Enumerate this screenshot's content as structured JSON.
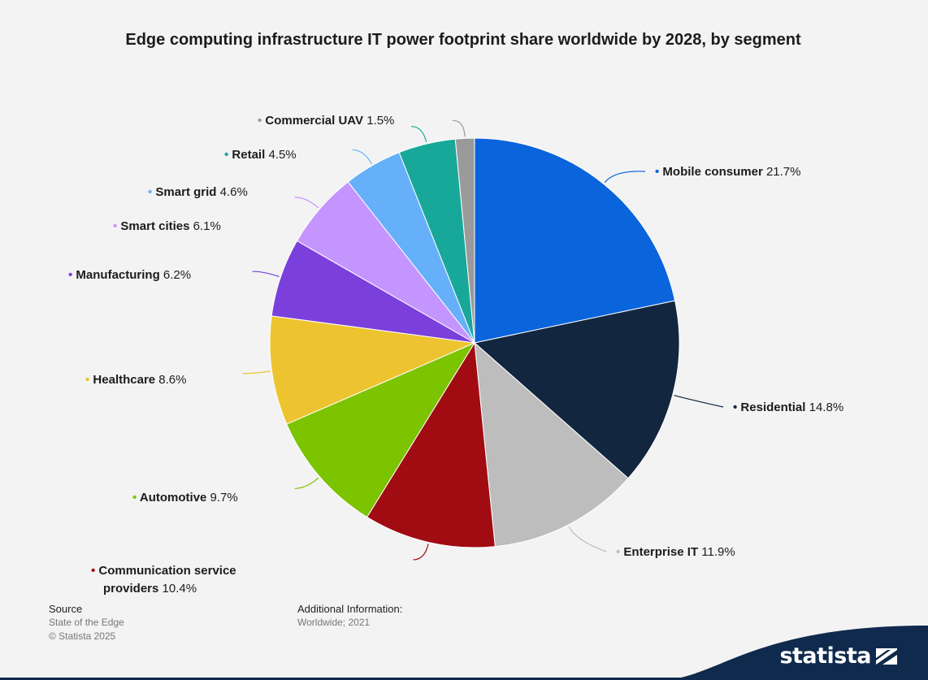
{
  "title": "Edge computing infrastructure IT power footprint share worldwide by 2028, by segment",
  "chart_data": {
    "type": "pie",
    "unit": "%",
    "slices": [
      {
        "name": "Mobile consumer",
        "value": 21.7,
        "label": "21.7%",
        "color": "#0a64dc"
      },
      {
        "name": "Residential",
        "value": 14.8,
        "label": "14.8%",
        "color": "#12263f"
      },
      {
        "name": "Enterprise IT",
        "value": 11.9,
        "label": "11.9%",
        "color": "#bdbdbd"
      },
      {
        "name": "Communication service providers",
        "value": 10.4,
        "label": "10.4%",
        "color": "#a10b12"
      },
      {
        "name": "Automotive",
        "value": 9.7,
        "label": "9.7%",
        "color": "#7cc300"
      },
      {
        "name": "Healthcare",
        "value": 8.6,
        "label": "8.6%",
        "color": "#edc430"
      },
      {
        "name": "Manufacturing",
        "value": 6.2,
        "label": "6.2%",
        "color": "#7b3fdb"
      },
      {
        "name": "Smart cities",
        "value": 6.1,
        "label": "6.1%",
        "color": "#c595ff"
      },
      {
        "name": "Smart grid",
        "value": 4.6,
        "label": "4.6%",
        "color": "#66b0fa"
      },
      {
        "name": "Retail",
        "value": 4.5,
        "label": "4.5%",
        "color": "#18a89a"
      },
      {
        "name": "Commercial UAV",
        "value": 1.5,
        "label": "1.5%",
        "color": "#9a9a9a"
      }
    ]
  },
  "footer": {
    "source_heading": "Source",
    "source_lines": [
      "State of the Edge",
      "© Statista 2025"
    ],
    "info_heading": "Additional Information:",
    "info_lines": [
      "Worldwide; 2021"
    ]
  },
  "brand": {
    "name": "statista",
    "color": "#0f2a4d"
  }
}
